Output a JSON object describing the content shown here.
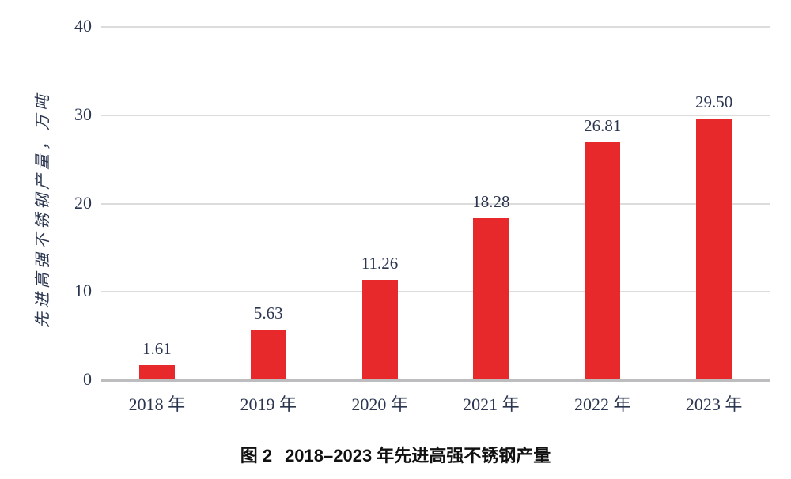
{
  "figure": {
    "caption_prefix": "图 2",
    "caption_title": "2018–2023 年先进高强不锈钢产量"
  },
  "chart_data": {
    "type": "bar",
    "title": "图 2 2018–2023 年先进高强不锈钢产量",
    "ylabel": "先进高强不锈钢产量，万吨",
    "xlabel": "",
    "categories": [
      "2018 年",
      "2019 年",
      "2020 年",
      "2021 年",
      "2022 年",
      "2023 年"
    ],
    "values": [
      1.61,
      5.63,
      11.26,
      18.28,
      26.81,
      29.5
    ],
    "value_labels": [
      "1.61",
      "5.63",
      "11.26",
      "18.28",
      "26.81",
      "29.50"
    ],
    "ylim": [
      0,
      40
    ],
    "yticks": [
      40,
      30,
      20,
      10,
      0
    ],
    "grid": true,
    "legend": "none",
    "bar_color": "#e7292c"
  },
  "colors": {
    "bar": "#e7292c",
    "text": "#2a3550",
    "caption": "#111111",
    "gridline": "#dcdcdc",
    "baseline": "#bdbdbf",
    "background": "#ffffff"
  }
}
